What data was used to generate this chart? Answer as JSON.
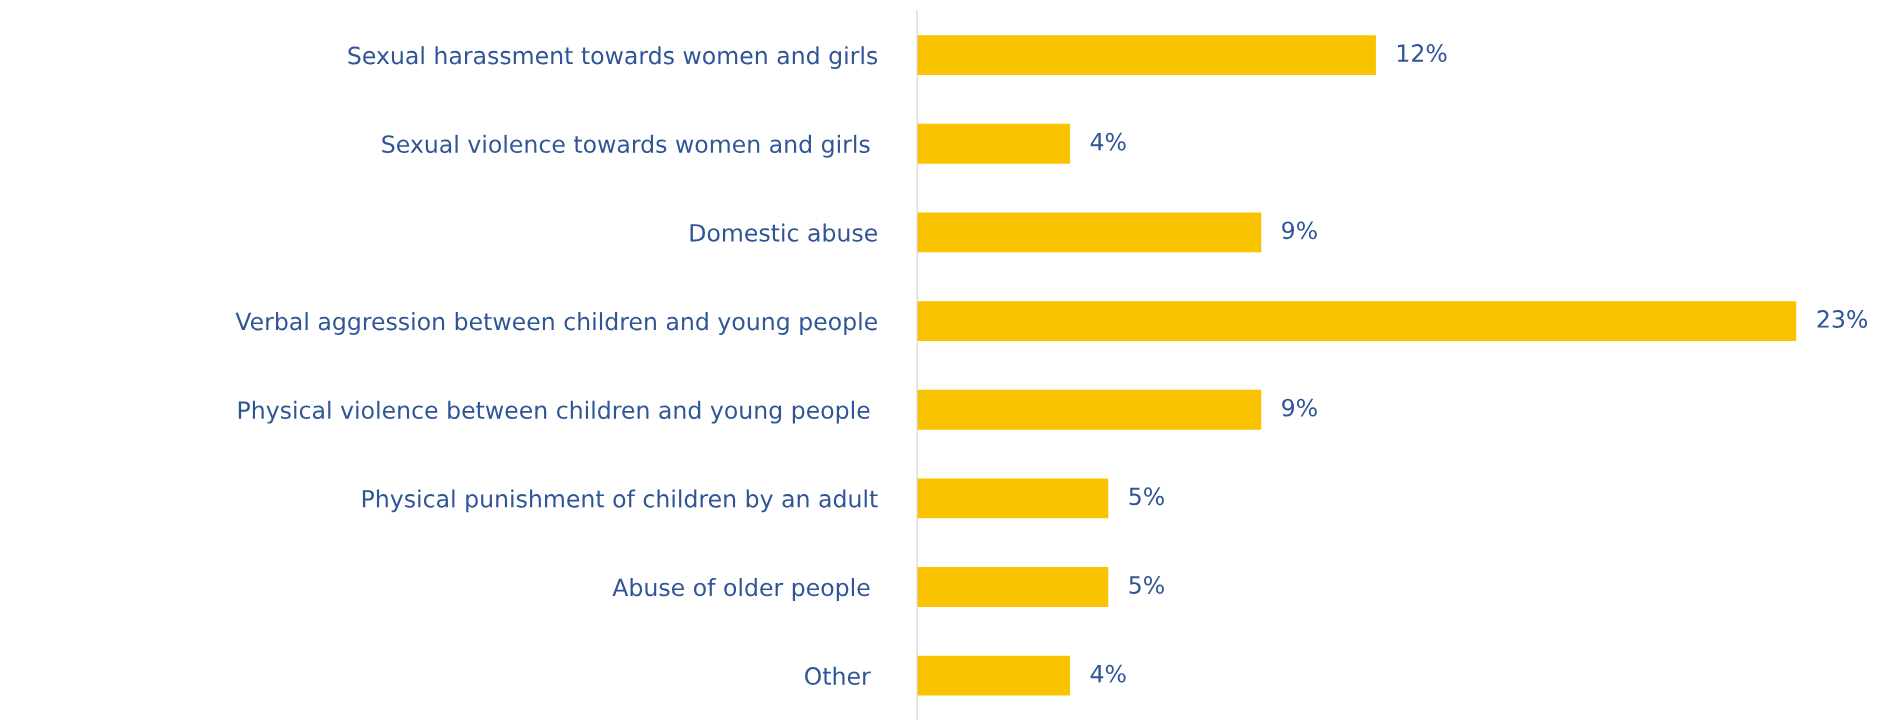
{
  "chart_data": {
    "type": "bar",
    "orientation": "horizontal",
    "categories": [
      "Sexual harassment towards women and girls",
      "Sexual violence towards women and girls ",
      "Domestic abuse",
      "Verbal aggression between children and young people",
      "Physical violence between children and young people ",
      "Physical punishment of children by an adult",
      "Abuse of older people ",
      "Other "
    ],
    "values": [
      12,
      4,
      9,
      23,
      9,
      5,
      5,
      4
    ],
    "value_labels": [
      "12%",
      "4%",
      "9%",
      "23%",
      "9%",
      "5%",
      "5%",
      "4%"
    ],
    "color": "#f9c300",
    "grid": false,
    "legend": false,
    "tick_labels": "y"
  }
}
